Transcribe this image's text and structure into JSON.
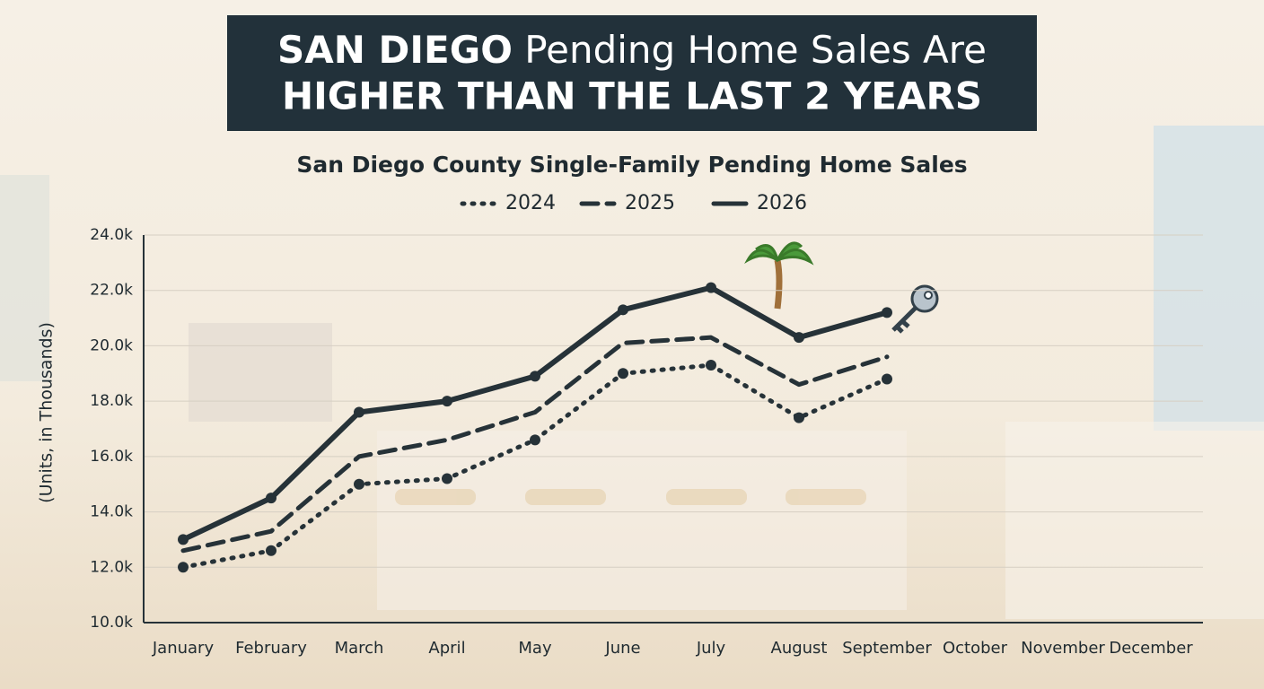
{
  "chart_data": {
    "type": "line",
    "title": [
      "SAN DIEGO",
      "Pending Home Sales Are",
      "HIGHER THAN THE LAST 2 YEARS"
    ],
    "subtitle": "San Diego County Single-Family Pending Home Sales",
    "y_label": "(Units, in Thousands)",
    "categories": [
      "January",
      "February",
      "March",
      "April",
      "May",
      "June",
      "July",
      "August",
      "September",
      "October",
      "November",
      "December"
    ],
    "series": [
      {
        "name": "2024",
        "color": "#263238",
        "dash": "dotted",
        "markers": true,
        "values": [
          12000,
          12600,
          15000,
          15200,
          16600,
          19000,
          19300,
          17400,
          18800,
          null,
          null,
          null
        ]
      },
      {
        "name": "2025",
        "color": "#263238",
        "dash": "dashed",
        "markers": false,
        "values": [
          12600,
          13300,
          16000,
          16600,
          17600,
          20100,
          20300,
          18600,
          19600,
          null,
          null,
          null
        ]
      },
      {
        "name": "2026",
        "color": "#263238",
        "dash": "solid",
        "markers": true,
        "values": [
          13000,
          14500,
          17600,
          18000,
          18900,
          21300,
          22100,
          20300,
          21200,
          null,
          null,
          null
        ]
      }
    ],
    "ylim": [
      10000,
      24000
    ],
    "yticks": [
      {
        "value": 10000,
        "label": "10.0k"
      },
      {
        "value": 12000,
        "label": "12.0k"
      },
      {
        "value": 14000,
        "label": "14.0k"
      },
      {
        "value": 16000,
        "label": "16.0k"
      },
      {
        "value": 18000,
        "label": "18.0k"
      },
      {
        "value": 20000,
        "label": "20.0k"
      },
      {
        "value": 22000,
        "label": "22.0k"
      },
      {
        "value": 24000,
        "label": "24.0k"
      }
    ],
    "grid": true
  }
}
